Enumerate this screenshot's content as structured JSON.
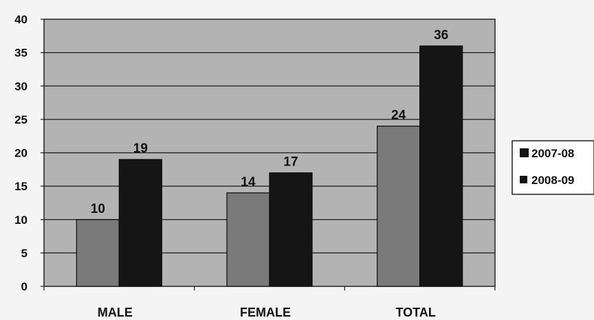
{
  "chart_data": {
    "type": "bar",
    "categories": [
      "MALE",
      "FEMALE",
      "TOTAL"
    ],
    "series": [
      {
        "name": "2007-08",
        "values": [
          10,
          14,
          24
        ],
        "color": "#7a7a7a"
      },
      {
        "name": "2008-09",
        "values": [
          19,
          17,
          36
        ],
        "color": "#151515"
      }
    ],
    "title": "",
    "xlabel": "",
    "ylabel": "",
    "ylim": [
      0,
      40
    ],
    "yticks": [
      0,
      5,
      10,
      15,
      20,
      25,
      30,
      35,
      40
    ],
    "grid": true,
    "legend": "right",
    "plot_background": "#b3b3b3"
  }
}
